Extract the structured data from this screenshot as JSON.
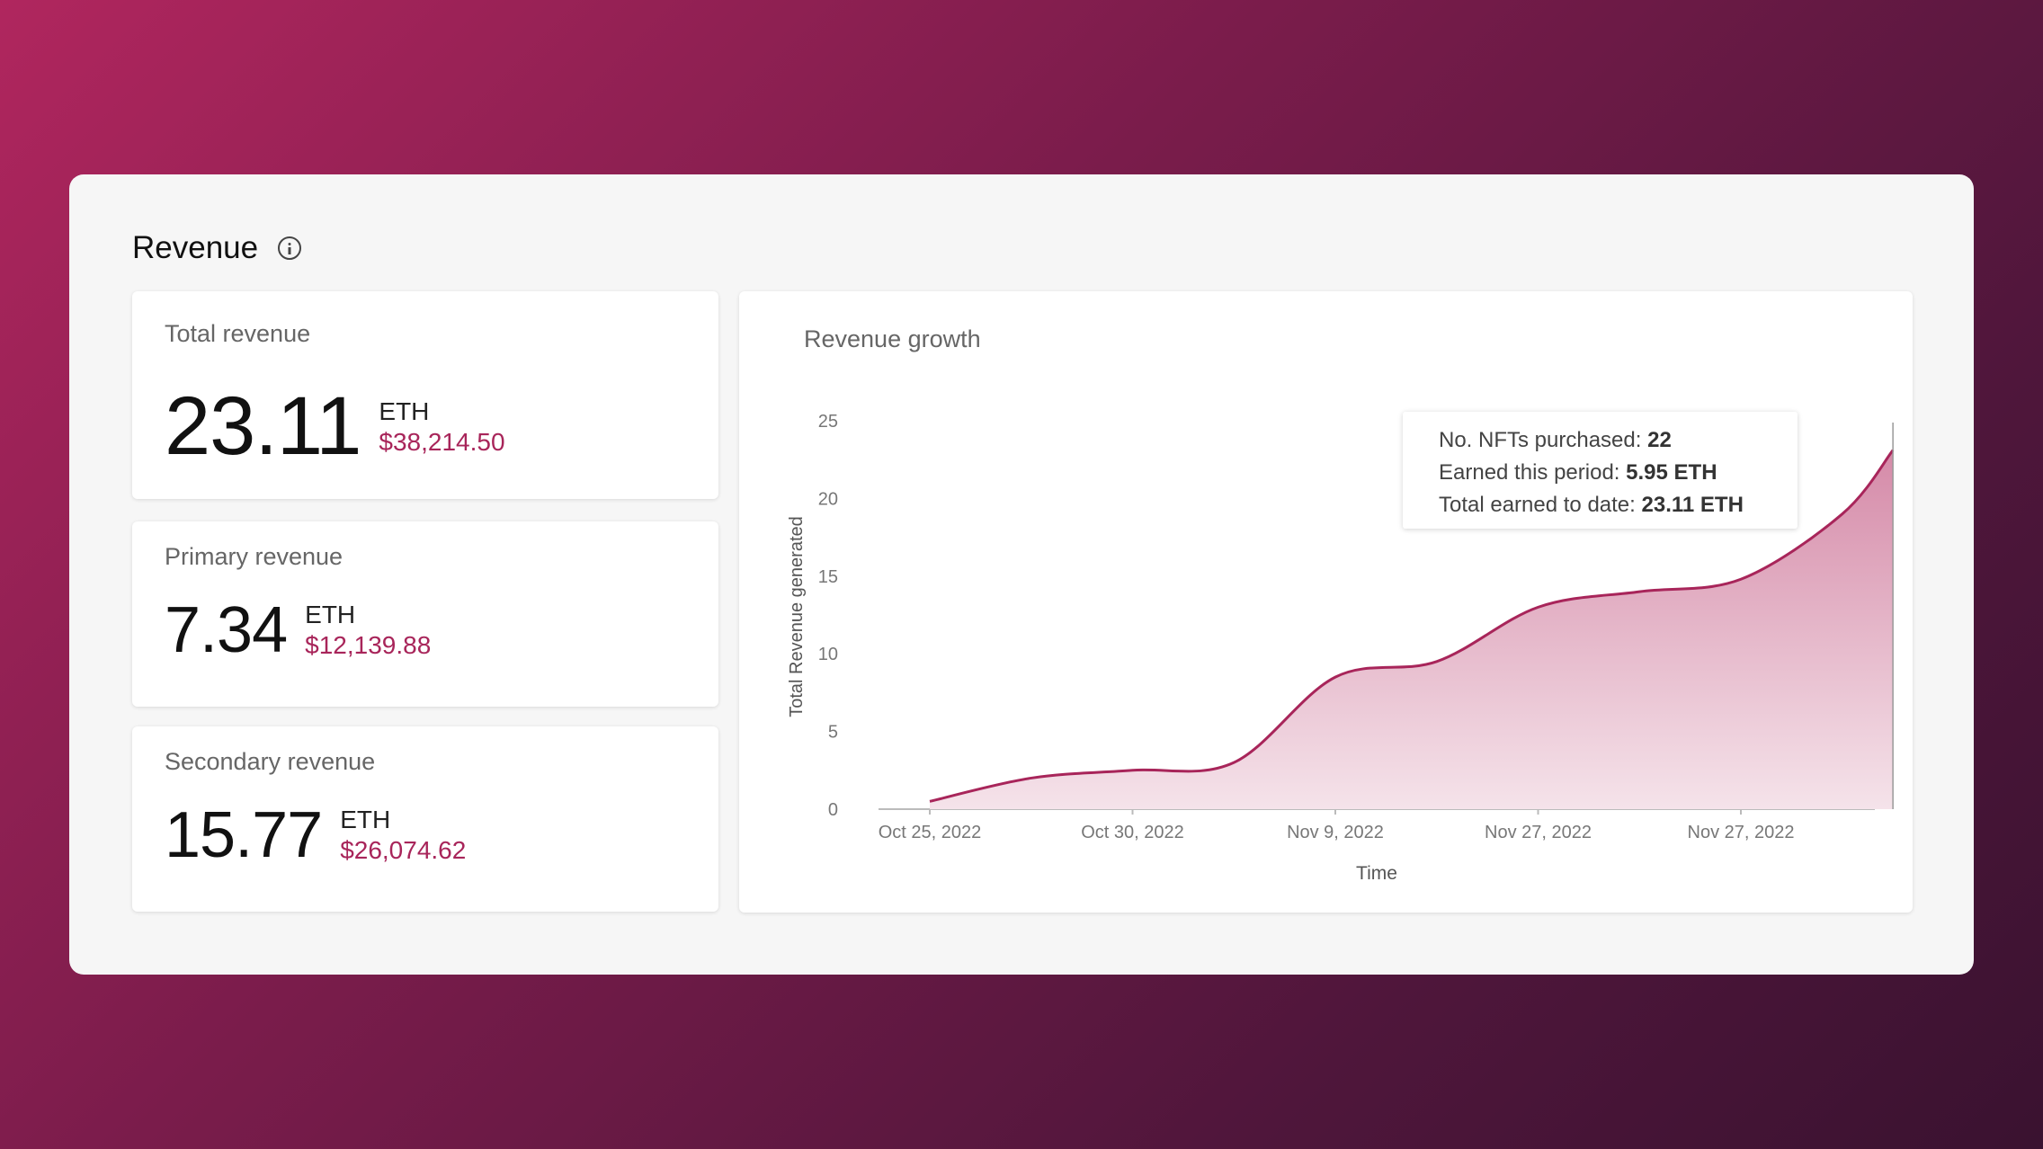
{
  "panel": {
    "title": "Revenue"
  },
  "stats": [
    {
      "label": "Total revenue",
      "value": "23.11",
      "unit": "ETH",
      "fiat": "$38,214.50"
    },
    {
      "label": "Primary revenue",
      "value": "7.34",
      "unit": "ETH",
      "fiat": "$12,139.88"
    },
    {
      "label": "Secondary revenue",
      "value": "15.77",
      "unit": "ETH",
      "fiat": "$26,074.62"
    }
  ],
  "chart": {
    "title": "Revenue growth",
    "tooltip": {
      "nfts_label": "No. NFTs purchased:",
      "nfts_value": "22",
      "period_label": "Earned this period:",
      "period_value": "5.95 ETH",
      "total_label": "Total earned to date:",
      "total_value": "23.11 ETH"
    }
  },
  "colors": {
    "accent": "#a8255a",
    "area_top": "#d58aa8",
    "area_bottom": "#f5e3ea"
  },
  "chart_data": {
    "type": "area",
    "title": "Revenue growth",
    "xlabel": "Time",
    "ylabel": "Total Revenue generated",
    "ylim": [
      0,
      25
    ],
    "yticks": [
      0,
      5,
      10,
      15,
      20,
      25
    ],
    "xtick_labels": [
      "Oct 25, 2022",
      "Oct 30, 2022",
      "Nov 9, 2022",
      "Nov 27, 2022",
      "Nov 27, 2022"
    ],
    "grid": false,
    "series": [
      {
        "x": [
          0,
          0.5,
          1,
          1.5,
          2,
          2.5,
          3,
          3.5,
          4,
          4.5,
          4.75
        ],
        "values": [
          0.5,
          2.0,
          2.5,
          3.0,
          8.5,
          9.5,
          13.0,
          14.0,
          14.8,
          19.0,
          23.11
        ]
      }
    ]
  }
}
